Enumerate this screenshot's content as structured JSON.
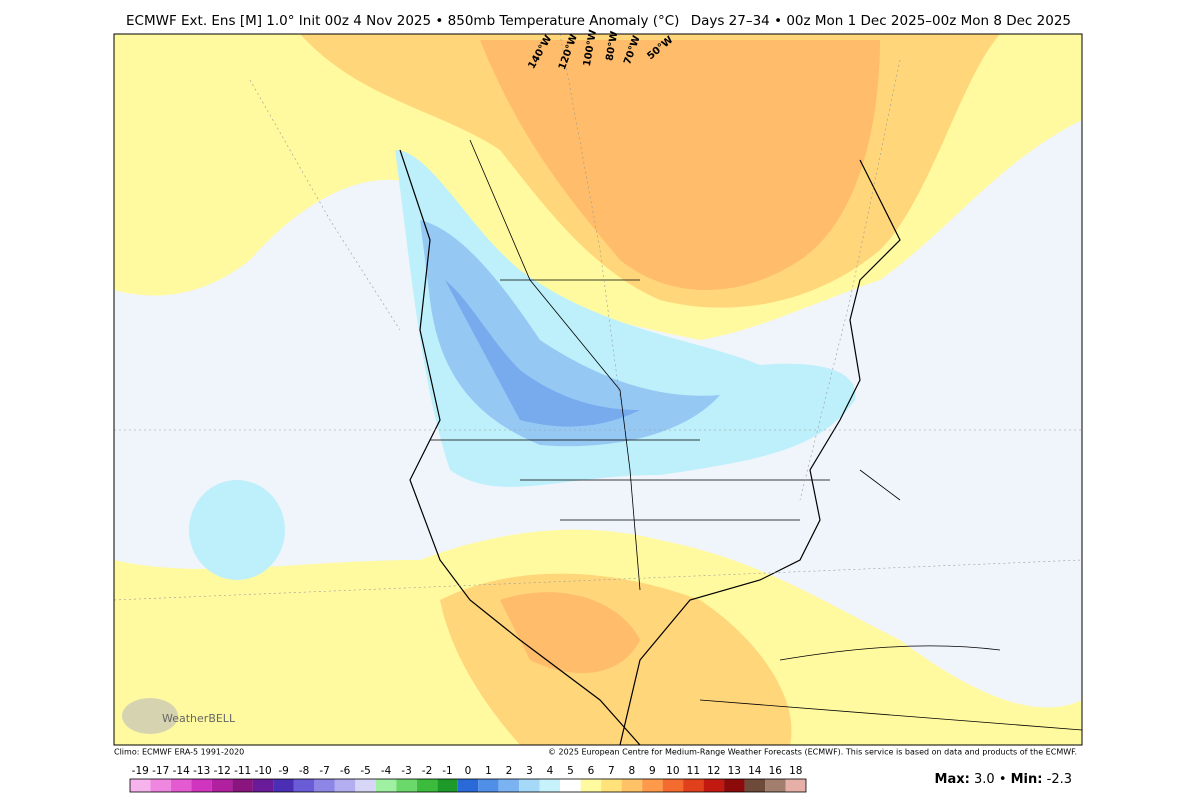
{
  "header": {
    "title": "ECMWF Ext. Ens [M] 1.0° Init 00z 4 Nov 2025 • 850mb Temperature Anomaly (°C)",
    "period": "Days 27–34 • 00z Mon 1 Dec 2025–00z Mon 8 Dec 2025"
  },
  "map": {
    "longitude_labels": [
      "140°W",
      "120°W",
      "100°W",
      "80°W",
      "70°W",
      "50°W"
    ],
    "logo": "WeatherBELL"
  },
  "footer": {
    "climo": "Climo: ECMWF ERA-5 1991-2020",
    "copyright": "© 2025 European Centre for Medium-Range Weather Forecasts (ECMWF). This service is based on data and products of the ECMWF."
  },
  "colorbar": {
    "labels": [
      "-19",
      "-17",
      "-14",
      "-13",
      "-12",
      "-11",
      "-10",
      "-9",
      "-8",
      "-7",
      "-6",
      "-5",
      "-4",
      "-3",
      "-2",
      "-1",
      "0",
      "1",
      "2",
      "3",
      "4",
      "5",
      "6",
      "7",
      "8",
      "9",
      "10",
      "11",
      "12",
      "13",
      "14",
      "16",
      "18"
    ],
    "colors": [
      "#f7b3ec",
      "#ef86e0",
      "#e35ad1",
      "#cf35be",
      "#b0209f",
      "#8a157f",
      "#6a1b9a",
      "#4a2fb4",
      "#6a5bd6",
      "#8d86e6",
      "#b2aef0",
      "#d7d6f7",
      "#9ff0a0",
      "#6ad86a",
      "#3cbc3c",
      "#1e9a2a",
      "#2a6ad8",
      "#4f8fe8",
      "#7bb2f2",
      "#a6d8f8",
      "#c8f2fb",
      "#ffffff",
      "#fffaa0",
      "#ffe27a",
      "#ffc266",
      "#ff9a4a",
      "#f36b2e",
      "#e0401c",
      "#c21a10",
      "#8c0a0a",
      "#6e4a3a",
      "#a27e6e",
      "#e6b0a8"
    ]
  },
  "stats": {
    "max_label": "Max:",
    "max": "3.0",
    "separator": "•",
    "min_label": "Min:",
    "min": "-2.3"
  }
}
